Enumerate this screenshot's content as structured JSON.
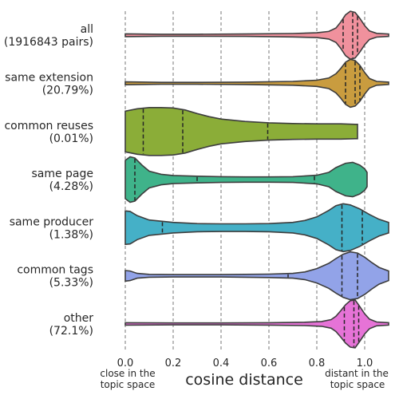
{
  "chart_data": {
    "type": "violin",
    "orientation": "horizontal",
    "title": "",
    "xlabel": "cosine distance",
    "xlim": [
      0.0,
      1.1
    ],
    "xticks": [
      "0.0",
      "0.2",
      "0.4",
      "0.6",
      "0.8",
      "1.0"
    ],
    "xtick_values": [
      0.0,
      0.2,
      0.4,
      0.6,
      0.8,
      1.0
    ],
    "grid": "vertical dashed",
    "annotations": {
      "left": [
        "close in the",
        "topic space"
      ],
      "right": [
        "distant in the",
        "topic space"
      ]
    },
    "categories": [
      {
        "label": [
          "all",
          "(1916843 pairs)"
        ],
        "color": "#f0919d",
        "quartiles": [
          0.91,
          0.95,
          0.97
        ],
        "profile": [
          [
            0.0,
            0.06
          ],
          [
            0.15,
            0.04
          ],
          [
            0.3,
            0.04
          ],
          [
            0.5,
            0.05
          ],
          [
            0.7,
            0.07
          ],
          [
            0.8,
            0.1
          ],
          [
            0.85,
            0.16
          ],
          [
            0.88,
            0.3
          ],
          [
            0.9,
            0.55
          ],
          [
            0.92,
            0.85
          ],
          [
            0.94,
            1.0
          ],
          [
            0.96,
            0.95
          ],
          [
            0.98,
            0.7
          ],
          [
            1.0,
            0.4
          ],
          [
            1.02,
            0.18
          ],
          [
            1.05,
            0.08
          ],
          [
            1.1,
            0.05
          ]
        ]
      },
      {
        "label": [
          "same extension",
          "(20.79%)"
        ],
        "color": "#c99c3f",
        "quartiles": [
          0.92,
          0.96,
          0.98
        ],
        "profile": [
          [
            0.0,
            0.06
          ],
          [
            0.15,
            0.04
          ],
          [
            0.3,
            0.04
          ],
          [
            0.5,
            0.05
          ],
          [
            0.7,
            0.08
          ],
          [
            0.8,
            0.13
          ],
          [
            0.85,
            0.22
          ],
          [
            0.88,
            0.4
          ],
          [
            0.9,
            0.62
          ],
          [
            0.92,
            0.88
          ],
          [
            0.94,
            1.0
          ],
          [
            0.96,
            0.95
          ],
          [
            0.98,
            0.75
          ],
          [
            1.0,
            0.45
          ],
          [
            1.02,
            0.2
          ],
          [
            1.05,
            0.08
          ],
          [
            1.1,
            0.05
          ]
        ]
      },
      {
        "label": [
          "common reuses",
          "(0.01%)"
        ],
        "color": "#8bad38",
        "quartiles": [
          0.075,
          0.24,
          0.595
        ],
        "profile": [
          [
            0.0,
            0.85
          ],
          [
            0.05,
            0.95
          ],
          [
            0.1,
            1.0
          ],
          [
            0.15,
            1.0
          ],
          [
            0.2,
            0.98
          ],
          [
            0.25,
            0.9
          ],
          [
            0.3,
            0.75
          ],
          [
            0.35,
            0.62
          ],
          [
            0.4,
            0.52
          ],
          [
            0.5,
            0.42
          ],
          [
            0.6,
            0.36
          ],
          [
            0.7,
            0.33
          ],
          [
            0.8,
            0.32
          ],
          [
            0.9,
            0.32
          ],
          [
            0.96,
            0.3
          ],
          [
            0.97,
            0.3
          ]
        ]
      },
      {
        "label": [
          "same page",
          "(4.28%)"
        ],
        "color": "#3fb38a",
        "quartiles": [
          0.04,
          0.3,
          0.79
        ],
        "profile": [
          [
            0.0,
            0.8
          ],
          [
            0.02,
            0.95
          ],
          [
            0.04,
            0.9
          ],
          [
            0.07,
            0.6
          ],
          [
            0.1,
            0.35
          ],
          [
            0.15,
            0.22
          ],
          [
            0.2,
            0.17
          ],
          [
            0.3,
            0.14
          ],
          [
            0.4,
            0.12
          ],
          [
            0.5,
            0.11
          ],
          [
            0.6,
            0.11
          ],
          [
            0.7,
            0.12
          ],
          [
            0.8,
            0.18
          ],
          [
            0.85,
            0.3
          ],
          [
            0.88,
            0.5
          ],
          [
            0.92,
            0.68
          ],
          [
            0.95,
            0.72
          ],
          [
            0.98,
            0.6
          ],
          [
            1.0,
            0.45
          ],
          [
            1.01,
            0.3
          ]
        ]
      },
      {
        "label": [
          "same producer",
          "(1.38%)"
        ],
        "color": "#45b0c7",
        "quartiles": [
          0.155,
          0.905,
          0.99
        ],
        "profile": [
          [
            0.0,
            0.7
          ],
          [
            0.02,
            0.68
          ],
          [
            0.05,
            0.5
          ],
          [
            0.1,
            0.32
          ],
          [
            0.2,
            0.22
          ],
          [
            0.3,
            0.17
          ],
          [
            0.4,
            0.16
          ],
          [
            0.5,
            0.16
          ],
          [
            0.6,
            0.17
          ],
          [
            0.7,
            0.22
          ],
          [
            0.75,
            0.3
          ],
          [
            0.8,
            0.45
          ],
          [
            0.85,
            0.72
          ],
          [
            0.88,
            0.92
          ],
          [
            0.91,
            1.0
          ],
          [
            0.94,
            0.95
          ],
          [
            0.98,
            0.78
          ],
          [
            1.02,
            0.55
          ],
          [
            1.06,
            0.35
          ],
          [
            1.1,
            0.22
          ]
        ]
      },
      {
        "label": [
          "common tags",
          "(5.33%)"
        ],
        "color": "#92a3e8",
        "quartiles": [
          0.68,
          0.905,
          0.97
        ],
        "profile": [
          [
            0.0,
            0.22
          ],
          [
            0.02,
            0.2
          ],
          [
            0.05,
            0.1
          ],
          [
            0.1,
            0.06
          ],
          [
            0.2,
            0.05
          ],
          [
            0.4,
            0.05
          ],
          [
            0.6,
            0.07
          ],
          [
            0.7,
            0.1
          ],
          [
            0.75,
            0.16
          ],
          [
            0.8,
            0.3
          ],
          [
            0.85,
            0.52
          ],
          [
            0.88,
            0.72
          ],
          [
            0.91,
            0.9
          ],
          [
            0.94,
            1.0
          ],
          [
            0.97,
            0.95
          ],
          [
            1.0,
            0.78
          ],
          [
            1.03,
            0.55
          ],
          [
            1.06,
            0.35
          ],
          [
            1.1,
            0.2
          ]
        ]
      },
      {
        "label": [
          "other",
          "(72.1%)"
        ],
        "color": "#e673d7",
        "quartiles": [
          0.915,
          0.955,
          0.975
        ],
        "profile": [
          [
            0.0,
            0.05
          ],
          [
            0.2,
            0.04
          ],
          [
            0.4,
            0.04
          ],
          [
            0.6,
            0.05
          ],
          [
            0.75,
            0.07
          ],
          [
            0.82,
            0.1
          ],
          [
            0.86,
            0.18
          ],
          [
            0.88,
            0.32
          ],
          [
            0.9,
            0.55
          ],
          [
            0.92,
            0.8
          ],
          [
            0.94,
            0.97
          ],
          [
            0.96,
            1.0
          ],
          [
            0.98,
            0.72
          ],
          [
            1.0,
            0.42
          ],
          [
            1.02,
            0.2
          ],
          [
            1.05,
            0.08
          ],
          [
            1.1,
            0.05
          ]
        ]
      }
    ]
  }
}
